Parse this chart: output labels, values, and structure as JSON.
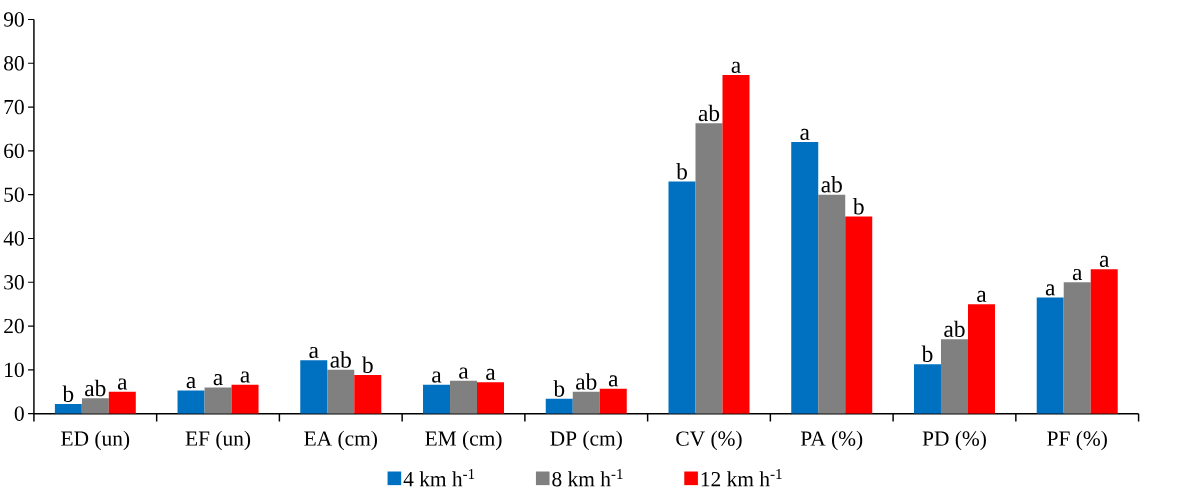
{
  "chart_data": {
    "type": "bar",
    "categories": [
      "ED (un)",
      "EF (un)",
      "EA (cm)",
      "EM (cm)",
      "DP (cm)",
      "CV (%)",
      "PA (%)",
      "PD (%)",
      "PF (%)"
    ],
    "series": [
      {
        "name": "4   km h$^{-1}$",
        "color": "#0070c0",
        "values": [
          2.2,
          5.3,
          12.2,
          6.6,
          3.4,
          53,
          62,
          11.3,
          26.5
        ],
        "value_labels": [
          "b",
          "a",
          "a",
          "a",
          "b",
          "b",
          "a",
          "b",
          "a"
        ]
      },
      {
        "name": "8   km h$^{-1}$",
        "color": "#808080",
        "values": [
          3.5,
          6.0,
          10.0,
          7.5,
          5.0,
          66.3,
          50,
          17,
          30
        ],
        "value_labels": [
          "ab",
          "a",
          "ab",
          "a",
          "ab",
          "ab",
          "ab",
          "ab",
          "a"
        ]
      },
      {
        "name": "12   km h$^{-1}$",
        "color": "#ff0000",
        "values": [
          5.0,
          6.6,
          8.8,
          7.2,
          5.7,
          77.3,
          45,
          25,
          33
        ],
        "value_labels": [
          "a",
          "a",
          "b",
          "a",
          "a",
          "a",
          "b",
          "a",
          "a"
        ]
      }
    ],
    "ylim": [
      0,
      90
    ],
    "yticks": [
      0,
      10,
      20,
      30,
      40,
      50,
      60,
      70,
      80,
      90
    ],
    "grid": false,
    "legend": "bottom"
  }
}
